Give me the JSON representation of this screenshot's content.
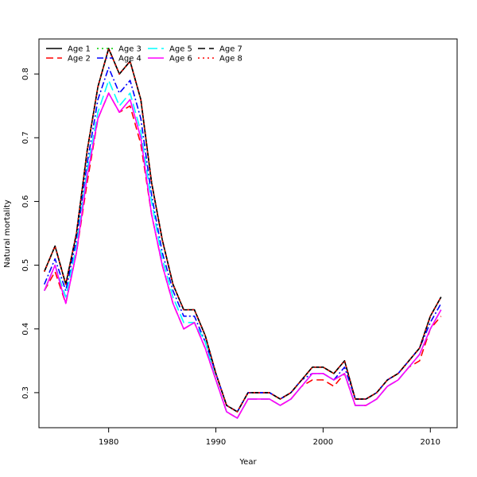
{
  "chart_data": {
    "type": "line",
    "title": "",
    "xlabel": "Year",
    "ylabel": "Natural mortality",
    "xlim": [
      1973.5,
      2012.5
    ],
    "ylim": [
      0.245,
      0.855
    ],
    "xticks": [
      1980,
      1990,
      2000,
      2010
    ],
    "yticks": [
      0.3,
      0.4,
      0.5,
      0.6,
      0.7,
      0.8
    ],
    "grid": false,
    "legend_position": "top-left",
    "x": [
      1974,
      1975,
      1976,
      1977,
      1978,
      1979,
      1980,
      1981,
      1982,
      1983,
      1984,
      1985,
      1986,
      1987,
      1988,
      1989,
      1990,
      1991,
      1992,
      1993,
      1994,
      1995,
      1996,
      1997,
      1998,
      1999,
      2000,
      2001,
      2002,
      2003,
      2004,
      2005,
      2006,
      2007,
      2008,
      2009,
      2010,
      2011
    ],
    "series": [
      {
        "name": "Age 1",
        "color": "#000000",
        "dash": "",
        "values": [
          0.49,
          0.53,
          0.47,
          0.55,
          0.68,
          0.78,
          0.84,
          0.8,
          0.82,
          0.76,
          0.63,
          0.54,
          0.47,
          0.43,
          0.43,
          0.39,
          0.33,
          0.28,
          0.27,
          0.3,
          0.3,
          0.3,
          0.29,
          0.3,
          0.32,
          0.34,
          0.34,
          0.33,
          0.35,
          0.29,
          0.29,
          0.3,
          0.32,
          0.33,
          0.35,
          0.37,
          0.42,
          0.45
        ]
      },
      {
        "name": "Age 2",
        "color": "#ff0000",
        "dash": "9,5",
        "values": [
          0.46,
          0.49,
          0.44,
          0.52,
          0.63,
          0.73,
          0.77,
          0.74,
          0.75,
          0.69,
          0.58,
          0.5,
          0.44,
          0.4,
          0.41,
          0.37,
          0.32,
          0.27,
          0.26,
          0.29,
          0.29,
          0.29,
          0.28,
          0.29,
          0.31,
          0.32,
          0.32,
          0.31,
          0.33,
          0.28,
          0.28,
          0.29,
          0.31,
          0.32,
          0.34,
          0.35,
          0.4,
          0.42
        ]
      },
      {
        "name": "Age 3",
        "color": "#00cd00",
        "dash": "2,4",
        "values": [
          0.49,
          0.53,
          0.47,
          0.55,
          0.68,
          0.78,
          0.84,
          0.8,
          0.82,
          0.76,
          0.63,
          0.54,
          0.47,
          0.43,
          0.43,
          0.39,
          0.33,
          0.28,
          0.27,
          0.3,
          0.3,
          0.3,
          0.29,
          0.3,
          0.32,
          0.34,
          0.34,
          0.33,
          0.35,
          0.29,
          0.29,
          0.3,
          0.32,
          0.33,
          0.35,
          0.37,
          0.42,
          0.45
        ]
      },
      {
        "name": "Age 4",
        "color": "#0000ff",
        "dash": "8,3,2,3",
        "values": [
          0.47,
          0.51,
          0.46,
          0.54,
          0.66,
          0.76,
          0.81,
          0.77,
          0.79,
          0.73,
          0.61,
          0.52,
          0.46,
          0.42,
          0.42,
          0.38,
          0.33,
          0.28,
          0.27,
          0.3,
          0.3,
          0.3,
          0.29,
          0.3,
          0.32,
          0.33,
          0.33,
          0.32,
          0.34,
          0.29,
          0.29,
          0.3,
          0.32,
          0.33,
          0.35,
          0.37,
          0.41,
          0.44
        ]
      },
      {
        "name": "Age 5",
        "color": "#00ffff",
        "dash": "12,5",
        "values": [
          0.46,
          0.5,
          0.45,
          0.53,
          0.65,
          0.74,
          0.79,
          0.75,
          0.77,
          0.71,
          0.6,
          0.51,
          0.45,
          0.41,
          0.41,
          0.38,
          0.32,
          0.27,
          0.26,
          0.29,
          0.29,
          0.29,
          0.28,
          0.29,
          0.31,
          0.33,
          0.33,
          0.32,
          0.33,
          0.28,
          0.28,
          0.29,
          0.31,
          0.32,
          0.34,
          0.36,
          0.4,
          0.43
        ]
      },
      {
        "name": "Age 6",
        "color": "#ff00ff",
        "dash": "",
        "values": [
          0.46,
          0.5,
          0.44,
          0.52,
          0.64,
          0.73,
          0.77,
          0.74,
          0.76,
          0.7,
          0.58,
          0.5,
          0.44,
          0.4,
          0.41,
          0.37,
          0.32,
          0.27,
          0.26,
          0.29,
          0.29,
          0.29,
          0.28,
          0.29,
          0.31,
          0.33,
          0.33,
          0.32,
          0.33,
          0.28,
          0.28,
          0.29,
          0.31,
          0.32,
          0.34,
          0.36,
          0.4,
          0.43
        ]
      },
      {
        "name": "Age 7",
        "color": "#000000",
        "dash": "9,5",
        "values": [
          0.49,
          0.53,
          0.47,
          0.55,
          0.68,
          0.78,
          0.84,
          0.8,
          0.82,
          0.76,
          0.63,
          0.54,
          0.47,
          0.43,
          0.43,
          0.39,
          0.33,
          0.28,
          0.27,
          0.3,
          0.3,
          0.3,
          0.29,
          0.3,
          0.32,
          0.34,
          0.34,
          0.33,
          0.35,
          0.29,
          0.29,
          0.3,
          0.32,
          0.33,
          0.35,
          0.37,
          0.42,
          0.45
        ]
      },
      {
        "name": "Age 8",
        "color": "#ff0000",
        "dash": "2,4",
        "values": [
          0.49,
          0.53,
          0.47,
          0.55,
          0.68,
          0.78,
          0.84,
          0.8,
          0.82,
          0.76,
          0.63,
          0.54,
          0.47,
          0.43,
          0.43,
          0.39,
          0.33,
          0.28,
          0.27,
          0.3,
          0.3,
          0.3,
          0.29,
          0.3,
          0.32,
          0.34,
          0.34,
          0.33,
          0.35,
          0.29,
          0.29,
          0.3,
          0.32,
          0.33,
          0.35,
          0.37,
          0.42,
          0.45
        ]
      }
    ]
  }
}
